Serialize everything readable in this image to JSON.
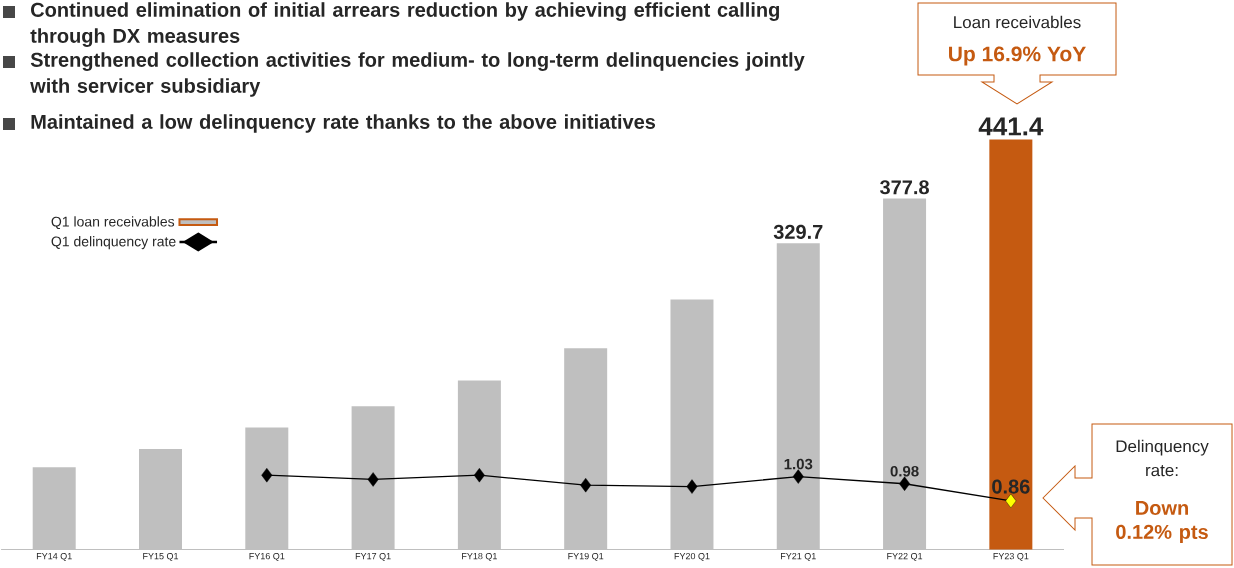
{
  "chart_data": {
    "type": "bar",
    "categories": [
      "FY14 Q1",
      "FY15 Q1",
      "FY16 Q1",
      "FY17 Q1",
      "FY18 Q1",
      "FY19 Q1",
      "FY20 Q1",
      "FY21 Q1",
      "FY22 Q1",
      "FY23 Q1"
    ],
    "series": [
      {
        "name": "Q1 loan receivables",
        "colors": [
          "#bfbfbf",
          "#bfbfbf",
          "#bfbfbf",
          "#bfbfbf",
          "#bfbfbf",
          "#bfbfbf",
          "#bfbfbf",
          "#bfbfbf",
          "#bfbfbf",
          "#c55a11"
        ],
        "values": [
          88.5,
          108.1,
          131.2,
          154.3,
          182.0,
          216.6,
          269.0,
          329.7,
          377.8,
          441.4
        ],
        "value_labels": [
          null,
          null,
          null,
          null,
          null,
          null,
          null,
          "329.7",
          "377.8",
          "441.4"
        ]
      },
      {
        "name": "Q1 delinquency rate",
        "type": "line",
        "axis": "y2",
        "color": "#000000",
        "marker": "diamond",
        "line_style": "solid",
        "colors": [
          "#000000",
          "#000000",
          "#000000",
          "#000000",
          "#000000",
          "#000000",
          "#000000",
          "#000000",
          "#000000",
          "#ffff00"
        ],
        "values": [
          null,
          null,
          1.04,
          1.01,
          1.04,
          0.97,
          0.96,
          1.03,
          0.98,
          0.86
        ],
        "value_labels": [
          null,
          null,
          null,
          null,
          null,
          null,
          null,
          "1.03",
          "0.98",
          "0.86"
        ]
      }
    ],
    "tick_labels": "x",
    "legend": "top left",
    "annotations": [
      "Continued elimination of initial arrears reduction by achieving efficient calling through DX measures",
      "Strengthened collection activities for medium- to long-term delinquencies jointly with servicer subsidiary",
      "Maintained a low delinquency rate thanks to the above initiatives",
      "Loan receivables",
      "Up 16.9% YoY",
      "Delinquency rate:",
      "Down 0.12% pts"
    ]
  }
}
